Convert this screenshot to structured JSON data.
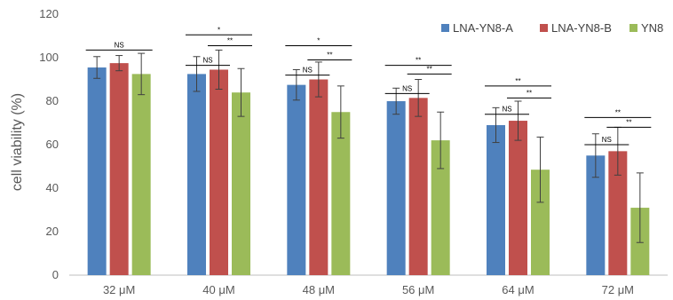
{
  "chart_data": {
    "type": "bar",
    "title": "",
    "xlabel": "",
    "ylabel": "cell viability (%)",
    "ylim": [
      0,
      120
    ],
    "yticks": [
      0,
      20,
      40,
      60,
      80,
      100,
      120
    ],
    "grid": false,
    "legend_position": "top-right",
    "categories": [
      "32 μM",
      "40 μM",
      "48 μM",
      "56 μM",
      "64 μM",
      "72 μM"
    ],
    "series": [
      {
        "name": "LNA-YN8-A",
        "color": "#4F81BD",
        "values": [
          95.5,
          92.5,
          87.5,
          80.0,
          69.0,
          55.0
        ],
        "errors": [
          5.0,
          8.0,
          7.0,
          6.0,
          8.0,
          10.0
        ]
      },
      {
        "name": "LNA-YN8-B",
        "color": "#C0504D",
        "values": [
          97.5,
          94.5,
          90.0,
          81.5,
          71.0,
          57.0
        ],
        "errors": [
          3.5,
          9.0,
          8.0,
          8.5,
          9.0,
          11.0
        ]
      },
      {
        "name": "YN8",
        "color": "#9BBB59",
        "values": [
          92.5,
          84.0,
          75.0,
          62.0,
          48.5,
          31.0
        ],
        "errors": [
          9.5,
          11.0,
          12.0,
          13.0,
          15.0,
          16.0
        ]
      }
    ],
    "annotations": [
      {
        "category": 0,
        "from": 0,
        "to": 2,
        "label": "NS",
        "y": 103.5
      },
      {
        "category": 1,
        "from": 0,
        "to": 2,
        "label": "*",
        "y": 110.5
      },
      {
        "category": 1,
        "from": 0,
        "to": 1,
        "label": "NS",
        "y": 96.5
      },
      {
        "category": 1,
        "from": 1,
        "to": 2,
        "label": "**",
        "y": 105.5
      },
      {
        "category": 2,
        "from": 0,
        "to": 2,
        "label": "*",
        "y": 105.5
      },
      {
        "category": 2,
        "from": 0,
        "to": 1,
        "label": "NS",
        "y": 92.0
      },
      {
        "category": 2,
        "from": 1,
        "to": 2,
        "label": "**",
        "y": 99.0
      },
      {
        "category": 3,
        "from": 0,
        "to": 2,
        "label": "**",
        "y": 96.5
      },
      {
        "category": 3,
        "from": 0,
        "to": 1,
        "label": "NS",
        "y": 83.5
      },
      {
        "category": 3,
        "from": 1,
        "to": 2,
        "label": "**",
        "y": 92.5
      },
      {
        "category": 4,
        "from": 0,
        "to": 2,
        "label": "**",
        "y": 87.0
      },
      {
        "category": 4,
        "from": 0,
        "to": 1,
        "label": "NS",
        "y": 74.0
      },
      {
        "category": 4,
        "from": 1,
        "to": 2,
        "label": "**",
        "y": 81.5
      },
      {
        "category": 5,
        "from": 0,
        "to": 2,
        "label": "**",
        "y": 72.5
      },
      {
        "category": 5,
        "from": 0,
        "to": 1,
        "label": "NS",
        "y": 60.0
      },
      {
        "category": 5,
        "from": 1,
        "to": 2,
        "label": "**",
        "y": 68.0
      }
    ]
  }
}
